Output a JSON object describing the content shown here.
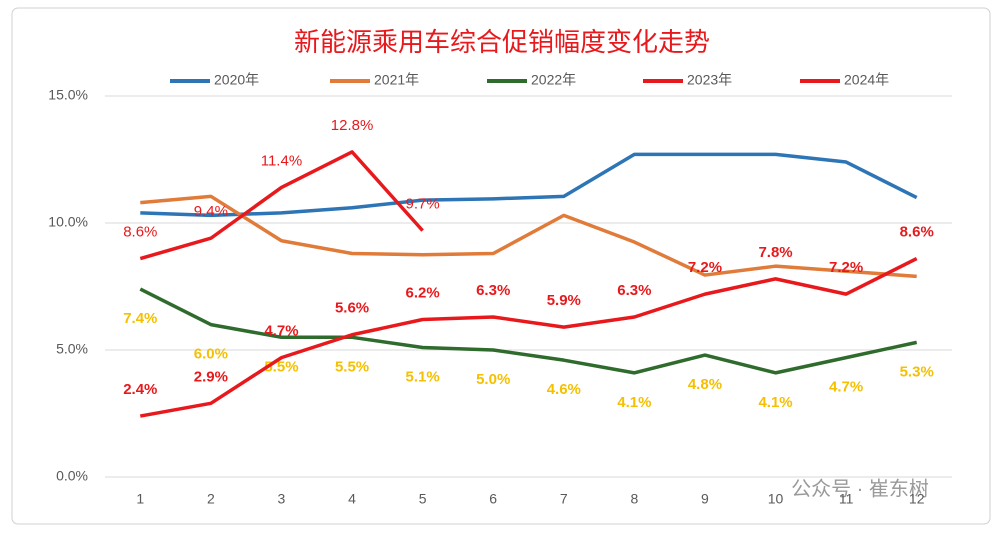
{
  "chart_data": {
    "type": "line",
    "title": "新能源乘用车综合促销幅度变化走势",
    "categories": [
      "1",
      "2",
      "3",
      "4",
      "5",
      "6",
      "7",
      "8",
      "9",
      "10",
      "11",
      "12"
    ],
    "series": [
      {
        "name": "2020年",
        "color": "#2e75b6",
        "values": [
          10.4,
          10.3,
          10.4,
          10.6,
          10.9,
          10.95,
          11.05,
          12.7,
          12.7,
          12.7,
          12.4,
          11.0
        ]
      },
      {
        "name": "2021年",
        "color": "#e07b39",
        "values": [
          10.8,
          11.05,
          9.3,
          8.8,
          8.75,
          8.8,
          10.3,
          9.25,
          7.95,
          8.3,
          8.1,
          7.9
        ]
      },
      {
        "name": "2022年",
        "color": "#2f6b2c",
        "label_color": "#f5c000",
        "values": [
          7.4,
          6.0,
          5.5,
          5.5,
          5.1,
          5.0,
          4.6,
          4.1,
          4.8,
          4.1,
          4.7,
          5.3
        ],
        "value_labels": [
          "7.4%",
          "6.0%",
          "5.5%",
          "5.5%",
          "5.1%",
          "5.0%",
          "4.6%",
          "4.1%",
          "4.8%",
          "4.1%",
          "4.7%",
          "5.3%"
        ]
      },
      {
        "name": "2023年",
        "color": "#e8191c",
        "label_color": "#e8191c",
        "values": [
          2.4,
          2.9,
          4.7,
          5.6,
          6.2,
          6.3,
          5.9,
          6.3,
          7.2,
          7.8,
          7.2,
          8.6
        ],
        "value_labels": [
          "2.4%",
          "2.9%",
          "4.7%",
          "5.6%",
          "6.2%",
          "6.3%",
          "5.9%",
          "6.3%",
          "7.2%",
          "7.8%",
          "7.2%",
          "8.6%"
        ]
      },
      {
        "name": "2024年",
        "color": "#e8191c",
        "label_color": "#e8191c",
        "values": [
          8.6,
          9.4,
          11.4,
          12.8,
          9.7,
          null,
          null,
          null,
          null,
          null,
          null,
          null
        ],
        "value_labels": [
          "8.6%",
          "9.4%",
          "11.4%",
          "12.8%",
          "9.7%",
          null,
          null,
          null,
          null,
          null,
          null,
          null
        ]
      }
    ],
    "ylim": [
      0,
      15
    ],
    "yticks": [
      {
        "value": 0,
        "label": "0.0%"
      },
      {
        "value": 5,
        "label": "5.0%"
      },
      {
        "value": 10,
        "label": "10.0%"
      },
      {
        "value": 15,
        "label": "15.0%"
      }
    ],
    "grid": true,
    "legend": "top",
    "watermark": "公众号 · 崔东树"
  }
}
